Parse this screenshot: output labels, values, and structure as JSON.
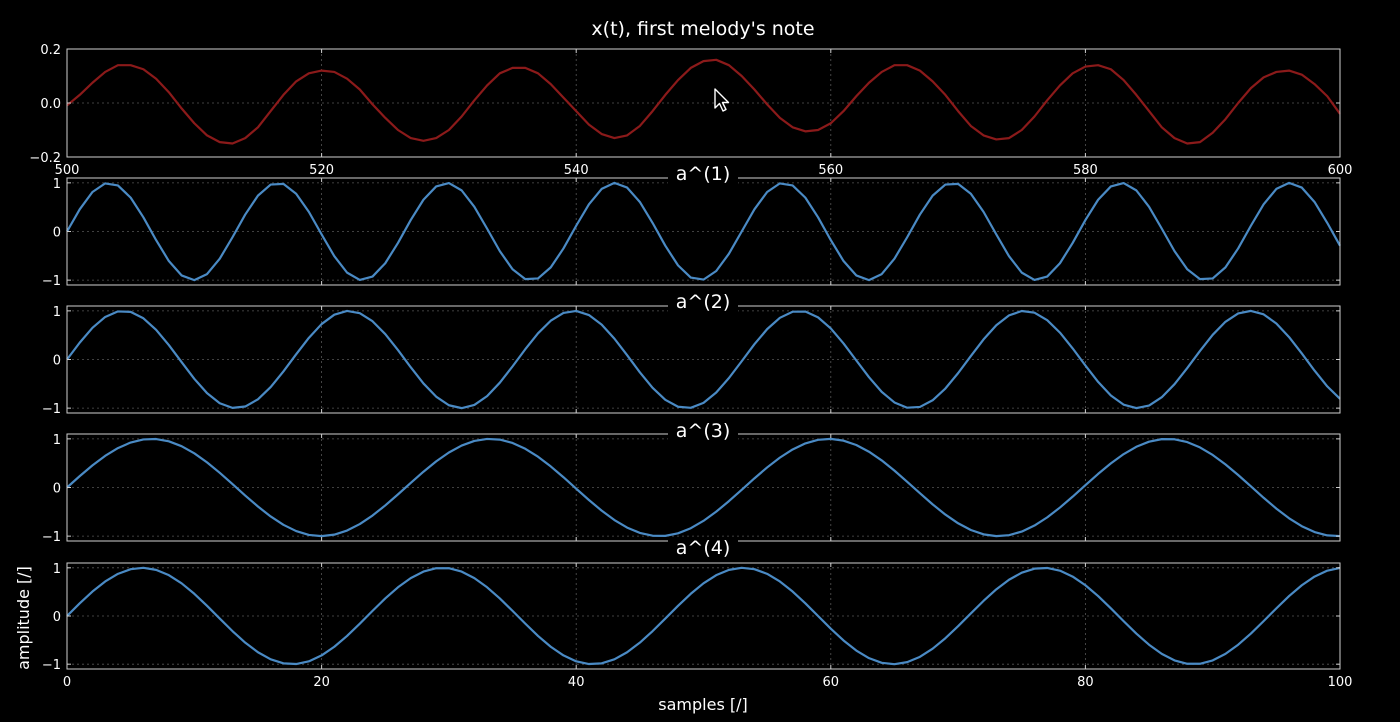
{
  "figure": {
    "background": "#000000",
    "axis_color": "#cfcfcf",
    "grid_color": "#555555",
    "text_color": "#ffffff"
  },
  "cursor": {
    "icon": "mouse-pointer-icon"
  },
  "chart_data": [
    {
      "type": "line",
      "title": "x(t), first melody's note",
      "xlabel": "",
      "ylabel": "",
      "xlim": [
        500,
        600
      ],
      "ylim": [
        -0.2,
        0.2
      ],
      "x_ticks": [
        500,
        520,
        540,
        560,
        580,
        600
      ],
      "x_tick_labels": [
        "500",
        "520",
        "540",
        "560",
        "580",
        "600"
      ],
      "y_ticks": [
        -0.2,
        0.0,
        0.2
      ],
      "y_tick_labels": [
        "−0.2",
        "0.0",
        "0.2"
      ],
      "grid": true,
      "color": "#8b1a1a",
      "series": [
        {
          "x": [
            500,
            501,
            502,
            503,
            504,
            505,
            506,
            507,
            508,
            509,
            510,
            511,
            512,
            513,
            514,
            515,
            516,
            517,
            518,
            519,
            520,
            521,
            522,
            523,
            524,
            525,
            526,
            527,
            528,
            529,
            530,
            531,
            532,
            533,
            534,
            535,
            536,
            537,
            538,
            539,
            540,
            541,
            542,
            543,
            544,
            545,
            546,
            547,
            548,
            549,
            550,
            551,
            552,
            553,
            554,
            555,
            556,
            557,
            558,
            559,
            560,
            561,
            562,
            563,
            564,
            565,
            566,
            567,
            568,
            569,
            570,
            571,
            572,
            573,
            574,
            575,
            576,
            577,
            578,
            579,
            580,
            581,
            582,
            583,
            584,
            585,
            586,
            587,
            588,
            589,
            590,
            591,
            592,
            593,
            594,
            595,
            596,
            597,
            598,
            599,
            600
          ],
          "y": [
            -0.009,
            0.03,
            0.075,
            0.115,
            0.14,
            0.14,
            0.125,
            0.09,
            0.04,
            -0.02,
            -0.075,
            -0.12,
            -0.145,
            -0.15,
            -0.13,
            -0.09,
            -0.03,
            0.03,
            0.08,
            0.11,
            0.12,
            0.115,
            0.09,
            0.05,
            -0.005,
            -0.055,
            -0.1,
            -0.13,
            -0.14,
            -0.13,
            -0.1,
            -0.05,
            0.01,
            0.065,
            0.11,
            0.13,
            0.13,
            0.11,
            0.07,
            0.02,
            -0.03,
            -0.08,
            -0.115,
            -0.13,
            -0.12,
            -0.085,
            -0.03,
            0.03,
            0.085,
            0.13,
            0.155,
            0.16,
            0.14,
            0.1,
            0.05,
            -0.005,
            -0.055,
            -0.09,
            -0.105,
            -0.1,
            -0.075,
            -0.03,
            0.025,
            0.075,
            0.115,
            0.14,
            0.14,
            0.12,
            0.08,
            0.03,
            -0.03,
            -0.085,
            -0.12,
            -0.135,
            -0.13,
            -0.1,
            -0.05,
            0.01,
            0.065,
            0.11,
            0.135,
            0.14,
            0.125,
            0.085,
            0.03,
            -0.03,
            -0.09,
            -0.13,
            -0.15,
            -0.145,
            -0.11,
            -0.06,
            0.0,
            0.055,
            0.095,
            0.115,
            0.12,
            0.105,
            0.07,
            0.025,
            -0.04
          ]
        }
      ]
    },
    {
      "type": "line",
      "title": "a^(1)",
      "xlim": [
        0,
        100
      ],
      "ylim": [
        -1.1,
        1.1
      ],
      "x_ticks": [
        0,
        20,
        40,
        60,
        80,
        100
      ],
      "x_tick_labels": [],
      "y_ticks": [
        -1,
        0,
        1
      ],
      "y_tick_labels": [
        "−1",
        "0",
        "1"
      ],
      "grid": true,
      "color": "#4a8ac4",
      "period": 13.25,
      "series": [
        {
          "function": "sin",
          "amplitude": 1,
          "period": 13.25,
          "phase": 0
        }
      ]
    },
    {
      "type": "line",
      "title": "a^(2)",
      "xlim": [
        0,
        100
      ],
      "ylim": [
        -1.1,
        1.1
      ],
      "x_ticks": [
        0,
        20,
        40,
        60,
        80,
        100
      ],
      "x_tick_labels": [],
      "y_ticks": [
        -1,
        0,
        1
      ],
      "y_tick_labels": [
        "−1",
        "0",
        "1"
      ],
      "grid": true,
      "color": "#4a8ac4",
      "period": 17.7,
      "series": [
        {
          "function": "sin",
          "amplitude": 1,
          "period": 17.7,
          "phase": 0
        }
      ]
    },
    {
      "type": "line",
      "title": "a^(3)",
      "xlim": [
        0,
        100
      ],
      "ylim": [
        -1.1,
        1.1
      ],
      "x_ticks": [
        0,
        20,
        40,
        60,
        80,
        100
      ],
      "x_tick_labels": [],
      "y_ticks": [
        -1,
        0,
        1
      ],
      "y_tick_labels": [
        "−1",
        "0",
        "1"
      ],
      "grid": true,
      "color": "#4a8ac4",
      "period": 26.6,
      "series": [
        {
          "function": "sin",
          "amplitude": 1,
          "period": 26.6,
          "phase": 0
        }
      ]
    },
    {
      "type": "line",
      "title": "a^(4)",
      "xlabel": "samples [/]",
      "ylabel": "amplitude [/]",
      "xlim": [
        0,
        100
      ],
      "ylim": [
        -1.1,
        1.1
      ],
      "x_ticks": [
        0,
        20,
        40,
        60,
        80,
        100
      ],
      "x_tick_labels": [
        "0",
        "20",
        "40",
        "60",
        "80",
        "100"
      ],
      "y_ticks": [
        -1,
        0,
        1
      ],
      "y_tick_labels": [
        "−1",
        "0",
        "1"
      ],
      "grid": true,
      "color": "#4a8ac4",
      "period": 23.6,
      "series": [
        {
          "function": "sin",
          "amplitude": 1,
          "period": 23.6,
          "phase": 0
        }
      ]
    }
  ]
}
